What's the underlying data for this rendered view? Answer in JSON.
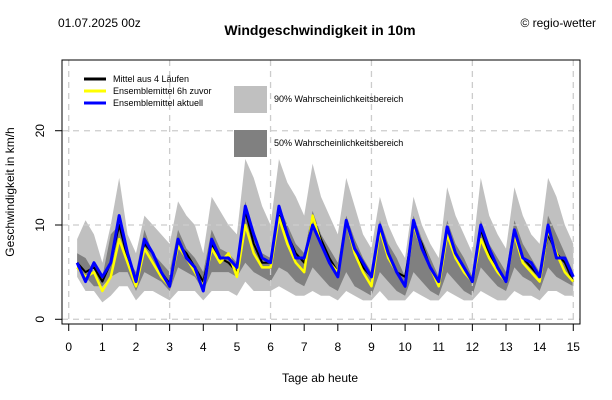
{
  "header": {
    "run_label": "01.07.2025 00z",
    "title": "Windgeschwindigkeit in 10m",
    "source": "© regio-wetter"
  },
  "chart_data": {
    "type": "area",
    "title": "Windgeschwindigkeit in 10m",
    "xlabel": "Tage ab heute",
    "ylabel": "Geschwindigkeit in km/h",
    "xlim": [
      -0.2,
      15.2
    ],
    "ylim": [
      -0.5,
      27.5
    ],
    "x_ticks": [
      0,
      1,
      2,
      3,
      4,
      5,
      6,
      7,
      8,
      9,
      10,
      11,
      12,
      13,
      14,
      15
    ],
    "y_ticks": [
      0,
      10,
      20
    ],
    "grid": true,
    "legend_position": "top-left",
    "legend": [
      {
        "label": "Mittel aus 4 Läufen",
        "color": "#000000",
        "type": "line"
      },
      {
        "label": "Ensemblemittel 6h zuvor",
        "color": "#ffff00",
        "type": "line"
      },
      {
        "label": "Ensemblemittel aktuell",
        "color": "#0000ff",
        "type": "line"
      },
      {
        "label": "90% Wahrscheinlichkeitsbereich",
        "color": "#c0c0c0",
        "type": "area"
      },
      {
        "label": "50% Wahrscheinlichkeitsbereich",
        "color": "#808080",
        "type": "area"
      }
    ],
    "x": [
      0.25,
      0.5,
      0.75,
      1,
      1.25,
      1.5,
      1.75,
      2,
      2.25,
      2.5,
      2.75,
      3,
      3.25,
      3.5,
      3.75,
      4,
      4.25,
      4.5,
      4.75,
      5,
      5.25,
      5.5,
      5.75,
      6,
      6.25,
      6.5,
      6.75,
      7,
      7.25,
      7.5,
      7.75,
      8,
      8.25,
      8.5,
      8.75,
      9,
      9.25,
      9.5,
      9.75,
      10,
      10.25,
      10.5,
      10.75,
      11,
      11.25,
      11.5,
      11.75,
      12,
      12.25,
      12.5,
      12.75,
      13,
      13.25,
      13.5,
      13.75,
      14,
      14.25,
      14.5,
      14.75,
      15
    ],
    "band90": {
      "lower": [
        4.5,
        3,
        3,
        1.8,
        2.5,
        3.5,
        3.5,
        2,
        3,
        3,
        2.5,
        2,
        3,
        3,
        3,
        2,
        3,
        3,
        3,
        2.5,
        4,
        3,
        3,
        3,
        3.5,
        3,
        2.5,
        2.5,
        3,
        2.5,
        2.5,
        2,
        3,
        2.5,
        2,
        2,
        3,
        2,
        2,
        2,
        3,
        2.5,
        2,
        2,
        3,
        2.5,
        2,
        2,
        3,
        2.5,
        2,
        2,
        3,
        2.5,
        2.5,
        2,
        3,
        3,
        2.5,
        2.5
      ],
      "upper": [
        8.5,
        10.5,
        9,
        6,
        10,
        15,
        9,
        7,
        11,
        10,
        9,
        8,
        12.5,
        11,
        10,
        7,
        13,
        11.5,
        10,
        9,
        17,
        15,
        12,
        10,
        17,
        14.5,
        13,
        11,
        16.5,
        13,
        11,
        9,
        15,
        12,
        9,
        7.5,
        13,
        10,
        8,
        6.5,
        13,
        10,
        8,
        6.5,
        14,
        11,
        9,
        7,
        15,
        11,
        9,
        7.5,
        14,
        11,
        9,
        8,
        15,
        13,
        10,
        8
      ]
    },
    "band50": {
      "lower": [
        5.5,
        4.5,
        3.5,
        3.5,
        4.5,
        5,
        5,
        3,
        5,
        4.5,
        4,
        3,
        5.5,
        5,
        4.5,
        3,
        5,
        5,
        5,
        4.5,
        6,
        5,
        4.5,
        4,
        5.5,
        5,
        4,
        3.5,
        5.5,
        4.5,
        3.5,
        3,
        5,
        3.5,
        3,
        2.5,
        5,
        4,
        3,
        2.5,
        5,
        4,
        3,
        2.5,
        5,
        4,
        3,
        2.5,
        5.5,
        4.5,
        3.5,
        3,
        5.5,
        4.5,
        4,
        3,
        5.5,
        4.5,
        4,
        3.5
      ],
      "upper": [
        7,
        6.5,
        5,
        4.5,
        9,
        10,
        6.5,
        5,
        9.5,
        7,
        6,
        5,
        9.5,
        7.5,
        6.5,
        5,
        9.5,
        7.5,
        7,
        6,
        12.5,
        9,
        7,
        6.5,
        12,
        10,
        8,
        7,
        11.5,
        9,
        7.5,
        6,
        11,
        8.5,
        6.5,
        5,
        10.5,
        8,
        6.5,
        4.5,
        11,
        8.5,
        6.5,
        4.5,
        10.5,
        8,
        6.5,
        4.5,
        10.5,
        8,
        6.5,
        5,
        10.5,
        8,
        6.5,
        5,
        11,
        9,
        7,
        5
      ]
    },
    "series": [
      {
        "name": "Mittel aus 4 Läufen",
        "color": "#000000",
        "values": [
          6,
          5,
          5.5,
          4,
          6,
          10,
          6.5,
          4,
          8,
          7,
          5,
          3.8,
          8,
          7,
          5.5,
          4,
          8,
          6.5,
          6,
          5,
          11.5,
          8,
          6,
          6,
          11,
          9,
          7,
          6,
          10.8,
          8.5,
          6.5,
          5,
          10.5,
          7.5,
          5.5,
          4.5,
          9.5,
          7,
          5,
          4.5,
          10,
          8,
          5.5,
          4,
          9.5,
          7,
          5,
          4,
          9.5,
          7,
          5.5,
          4,
          9,
          6.5,
          5.5,
          4.5,
          9,
          7,
          6,
          4
        ]
      },
      {
        "name": "Ensemblemittel 6h zuvor",
        "color": "#ffff00",
        "values": [
          5.5,
          4.5,
          5,
          3,
          4.5,
          8.5,
          6,
          3.5,
          7.5,
          6,
          4.5,
          3.5,
          7.8,
          6.5,
          5,
          3.5,
          7.5,
          6,
          7,
          4.5,
          10,
          7,
          5.5,
          5.5,
          10.8,
          8,
          6,
          5,
          11,
          8,
          6,
          5,
          10.5,
          7,
          5,
          3.5,
          9.5,
          6.5,
          5,
          3.5,
          10,
          7.5,
          5.5,
          3.5,
          9,
          6.5,
          5,
          4,
          8.5,
          6.5,
          5,
          4,
          9,
          6,
          5,
          4,
          9.5,
          7,
          5,
          4
        ]
      },
      {
        "name": "Ensemblemittel aktuell",
        "color": "#0000ff",
        "values": [
          6,
          4,
          6,
          4.5,
          6,
          11,
          7,
          4,
          8.5,
          7,
          5,
          3.5,
          8.5,
          6.5,
          5.5,
          3,
          8.5,
          6.5,
          6.5,
          5.5,
          12,
          9,
          6.5,
          6,
          12,
          9,
          6.5,
          6.5,
          10,
          8,
          6,
          4.5,
          10.5,
          7.5,
          6,
          4.5,
          10,
          7,
          5,
          3.5,
          10.5,
          7.5,
          5.5,
          4,
          9.8,
          7,
          5.5,
          4,
          10,
          7.5,
          5.5,
          4,
          9.5,
          6.5,
          6,
          4.5,
          10,
          6.5,
          6.5,
          4.5
        ]
      }
    ]
  }
}
